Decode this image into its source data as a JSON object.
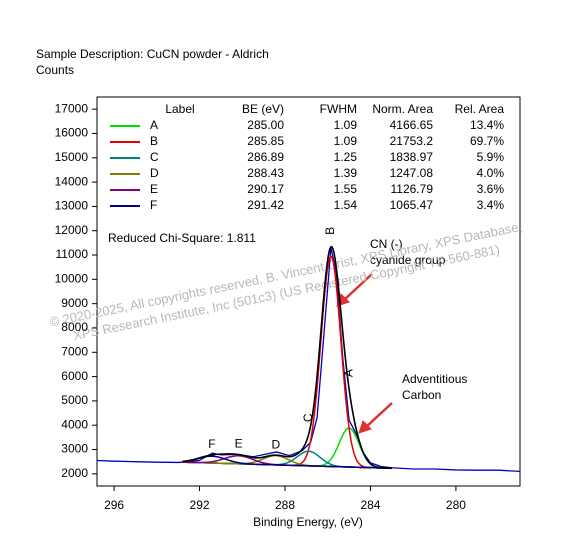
{
  "chart_data": {
    "type": "xps",
    "title": "Sample Description:  CuCN powder - Aldrich",
    "y_label": "Counts",
    "x_label": "Binding Energy, (eV)",
    "xlim": [
      296.8,
      277
    ],
    "ylim": [
      1500,
      17500
    ],
    "xticks": [
      296,
      292,
      288,
      284,
      280
    ],
    "yticks": [
      2000,
      3000,
      4000,
      5000,
      6000,
      7000,
      8000,
      9000,
      10000,
      11000,
      12000,
      13000,
      14000,
      15000,
      16000,
      17000
    ],
    "table": {
      "headers": [
        "Label",
        "BE (eV)",
        "FWHM",
        "Norm. Area",
        "Rel. Area"
      ],
      "labels": [
        "A",
        "B",
        "C",
        "D",
        "E",
        "F"
      ],
      "colors": [
        "#00e000",
        "#e00000",
        "#008080",
        "#808000",
        "#800080",
        "#000080"
      ],
      "be": [
        285.0,
        285.85,
        286.89,
        288.43,
        290.17,
        291.42
      ],
      "be_labels": [
        "285.00",
        "285.85",
        "286.89",
        "288.43",
        "290.17",
        "291.42"
      ],
      "fwhm": [
        1.09,
        1.09,
        1.25,
        1.39,
        1.55,
        1.54
      ],
      "norm_area": [
        4166.65,
        21753.2,
        1838.97,
        1247.08,
        1126.79,
        1065.47
      ],
      "rel_area": [
        13.4,
        69.7,
        5.9,
        4.0,
        3.6,
        3.4
      ],
      "rel_area_labels": [
        "13.4%",
        "69.7%",
        "5.9%",
        "4.0%",
        "3.6%",
        "3.4%"
      ],
      "heights": [
        1600,
        8650,
        600,
        380,
        330,
        280
      ]
    },
    "chi_square": "Reduced Chi-Square: 1.811",
    "background": {
      "x": [
        292.8,
        283.0
      ],
      "values": [
        2480,
        2230
      ]
    },
    "measured": {
      "name": "measured",
      "color": "#0000c0",
      "x": [
        296.8,
        296,
        295,
        294,
        293,
        292.5,
        292,
        291.4,
        291,
        290.2,
        289.5,
        288.4,
        287.8,
        287.2,
        286.8,
        286.5,
        286.2,
        285.85,
        285.6,
        285.3,
        285.0,
        284.7,
        284.4,
        284.0,
        283.5,
        283.0,
        282,
        281,
        280,
        279,
        278,
        277
      ],
      "values": [
        2550,
        2520,
        2500,
        2480,
        2470,
        2500,
        2560,
        2850,
        2780,
        2800,
        2700,
        2900,
        2750,
        2950,
        3300,
        4300,
        7500,
        11300,
        10300,
        6800,
        4200,
        3700,
        2950,
        2450,
        2300,
        2250,
        2200,
        2200,
        2160,
        2150,
        2150,
        2100
      ]
    },
    "annotations": [
      [
        "CN (-)",
        "cyanide group"
      ],
      [
        "Adventitious",
        "Carbon"
      ]
    ],
    "watermark": [
      "©  2020-2025,  All copyrights reserved,   B. Vincent Crist,   XPS Library,  XPS Database,",
      "XPS Research Institute, Inc (501c3)   (US Registered Copyright TX-560-881)"
    ]
  }
}
